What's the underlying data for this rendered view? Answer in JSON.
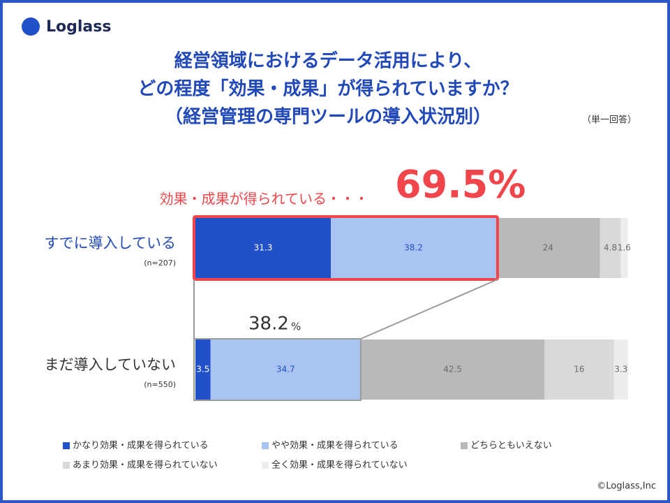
{
  "logo": "Loglass",
  "chart_data": {
    "type": "stacked-bar",
    "title": [
      "経営領域におけるデータ活用により、",
      "どの程度「効果・成果」が得られていますか？",
      "（経営管理の専門ツールの導入状況別）"
    ],
    "note": "（単一回答）",
    "categories": [
      "すでに導入している",
      "まだ導入していない"
    ],
    "category_notes": [
      "(n=207)",
      "(n=550)"
    ],
    "xlim": [
      0,
      100
    ],
    "series": [
      {
        "name": "かなり効果・成果を得られている",
        "color": "#2150c8",
        "label_color": "#ffffff",
        "values": [
          31.3,
          3.5
        ]
      },
      {
        "name": "やや効果・成果を得られている",
        "color": "#a9c4f2",
        "label_color": "#2150c8",
        "values": [
          38.2,
          34.7
        ]
      },
      {
        "name": "どちらともいえない",
        "color": "#b9b9b9",
        "label_color": "#6a6a6a",
        "values": [
          24.0,
          42.5
        ]
      },
      {
        "name": "あまり効果・成果を得られていない",
        "color": "#d9d9d9",
        "label_color": "#6a6a6a",
        "values": [
          4.8,
          16.0
        ]
      },
      {
        "name": "全く効果・成果を得られていない",
        "color": "#ededed",
        "label_color": "#6a6a6a",
        "values": [
          1.6,
          3.3
        ]
      }
    ],
    "annotations": {
      "highlight_label": "効果・成果が得られている・・・",
      "highlight_value": "69.5%",
      "sub_value": "38.2",
      "sub_unit": "%"
    }
  },
  "footer": "©Loglass,Inc"
}
